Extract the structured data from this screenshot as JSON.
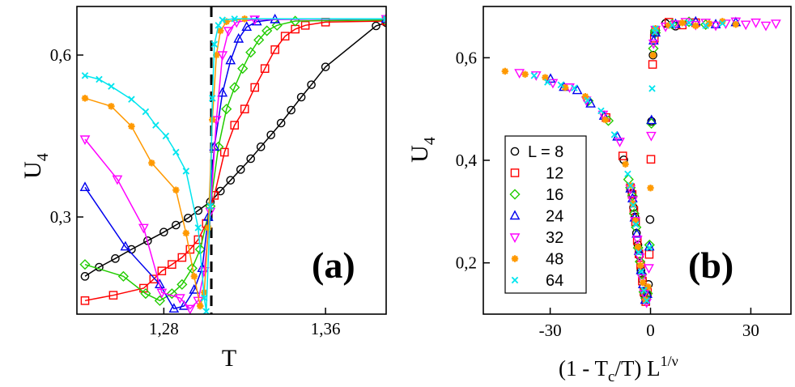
{
  "series_meta": [
    {
      "L": 8,
      "label": "L = 8",
      "color": "#000000",
      "marker": "circle"
    },
    {
      "L": 12,
      "label": "12",
      "color": "#ff0000",
      "marker": "square"
    },
    {
      "L": 16,
      "label": "16",
      "color": "#22cc00",
      "marker": "diamond"
    },
    {
      "L": 24,
      "label": "24",
      "color": "#0000ee",
      "marker": "triangle-up"
    },
    {
      "L": 32,
      "label": "32",
      "color": "#ff00ff",
      "marker": "triangle-down"
    },
    {
      "L": 48,
      "label": "48",
      "color": "#ff9900",
      "marker": "star"
    },
    {
      "L": 64,
      "label": "64",
      "color": "#00e5ee",
      "marker": "cross"
    }
  ],
  "chart_data": [
    {
      "type": "line",
      "panel_label": "(a)",
      "xlabel": "T",
      "ylabel": "U",
      "ylabel_sub": "4",
      "xlim": [
        1.237,
        1.39
      ],
      "ylim": [
        0.12,
        0.69
      ],
      "xticks": [
        {
          "value": 1.28,
          "label": "1,28"
        },
        {
          "value": 1.36,
          "label": "1,36"
        }
      ],
      "yticks": [
        {
          "value": 0.3,
          "label": "0,3"
        },
        {
          "value": 0.6,
          "label": "0,6"
        }
      ],
      "vline": {
        "x": 1.3035,
        "style": "dashed"
      },
      "series": [
        {
          "name": "L = 8",
          "points": [
            [
              1.241,
              0.19
            ],
            [
              1.248,
              0.207
            ],
            [
              1.256,
              0.223
            ],
            [
              1.264,
              0.24
            ],
            [
              1.272,
              0.256
            ],
            [
              1.28,
              0.272
            ],
            [
              1.286,
              0.285
            ],
            [
              1.292,
              0.298
            ],
            [
              1.297,
              0.312
            ],
            [
              1.303,
              0.328
            ],
            [
              1.308,
              0.348
            ],
            [
              1.313,
              0.368
            ],
            [
              1.318,
              0.388
            ],
            [
              1.323,
              0.408
            ],
            [
              1.328,
              0.43
            ],
            [
              1.333,
              0.452
            ],
            [
              1.338,
              0.474
            ],
            [
              1.343,
              0.498
            ],
            [
              1.348,
              0.522
            ],
            [
              1.353,
              0.545
            ],
            [
              1.36,
              0.578
            ],
            [
              1.385,
              0.654
            ],
            [
              1.39,
              0.66
            ]
          ]
        },
        {
          "name": "12",
          "points": [
            [
              1.241,
              0.145
            ],
            [
              1.255,
              0.155
            ],
            [
              1.27,
              0.168
            ],
            [
              1.275,
              0.185
            ],
            [
              1.279,
              0.2
            ],
            [
              1.284,
              0.212
            ],
            [
              1.289,
              0.225
            ],
            [
              1.293,
              0.24
            ],
            [
              1.297,
              0.258
            ],
            [
              1.301,
              0.288
            ],
            [
              1.305,
              0.34
            ],
            [
              1.31,
              0.42
            ],
            [
              1.315,
              0.47
            ],
            [
              1.32,
              0.5
            ],
            [
              1.325,
              0.54
            ],
            [
              1.33,
              0.575
            ],
            [
              1.335,
              0.61
            ],
            [
              1.34,
              0.635
            ],
            [
              1.345,
              0.648
            ],
            [
              1.35,
              0.655
            ],
            [
              1.36,
              0.661
            ],
            [
              1.39,
              0.663
            ]
          ]
        },
        {
          "name": "16",
          "points": [
            [
              1.241,
              0.212
            ],
            [
              1.26,
              0.19
            ],
            [
              1.271,
              0.158
            ],
            [
              1.278,
              0.145
            ],
            [
              1.284,
              0.158
            ],
            [
              1.289,
              0.175
            ],
            [
              1.294,
              0.205
            ],
            [
              1.298,
              0.24
            ],
            [
              1.303,
              0.32
            ],
            [
              1.307,
              0.43
            ],
            [
              1.311,
              0.5
            ],
            [
              1.315,
              0.54
            ],
            [
              1.319,
              0.575
            ],
            [
              1.323,
              0.605
            ],
            [
              1.327,
              0.628
            ],
            [
              1.331,
              0.645
            ],
            [
              1.336,
              0.655
            ],
            [
              1.345,
              0.663
            ],
            [
              1.39,
              0.665
            ]
          ]
        },
        {
          "name": "24",
          "points": [
            [
              1.241,
              0.355
            ],
            [
              1.261,
              0.245
            ],
            [
              1.278,
              0.175
            ],
            [
              1.285,
              0.13
            ],
            [
              1.29,
              0.135
            ],
            [
              1.295,
              0.165
            ],
            [
              1.299,
              0.205
            ],
            [
              1.302,
              0.3
            ],
            [
              1.305,
              0.43
            ],
            [
              1.309,
              0.53
            ],
            [
              1.313,
              0.59
            ],
            [
              1.317,
              0.63
            ],
            [
              1.321,
              0.652
            ],
            [
              1.326,
              0.662
            ],
            [
              1.335,
              0.666
            ],
            [
              1.39,
              0.667
            ]
          ]
        },
        {
          "name": "32",
          "points": [
            [
              1.241,
              0.444
            ],
            [
              1.257,
              0.37
            ],
            [
              1.27,
              0.28
            ],
            [
              1.279,
              0.16
            ],
            [
              1.288,
              0.15
            ],
            [
              1.293,
              0.13
            ],
            [
              1.297,
              0.145
            ],
            [
              1.3,
              0.2
            ],
            [
              1.303,
              0.31
            ],
            [
              1.306,
              0.48
            ],
            [
              1.309,
              0.6
            ],
            [
              1.312,
              0.645
            ],
            [
              1.316,
              0.661
            ],
            [
              1.325,
              0.666
            ],
            [
              1.39,
              0.667
            ]
          ]
        },
        {
          "name": "48",
          "points": [
            [
              1.241,
              0.52
            ],
            [
              1.254,
              0.505
            ],
            [
              1.264,
              0.468
            ],
            [
              1.274,
              0.4
            ],
            [
              1.286,
              0.35
            ],
            [
              1.291,
              0.27
            ],
            [
              1.295,
              0.19
            ],
            [
              1.298,
              0.135
            ],
            [
              1.3,
              0.16
            ],
            [
              1.302,
              0.28
            ],
            [
              1.304,
              0.48
            ],
            [
              1.306,
              0.6
            ],
            [
              1.308,
              0.645
            ],
            [
              1.311,
              0.662
            ],
            [
              1.32,
              0.667
            ],
            [
              1.39,
              0.667
            ]
          ]
        },
        {
          "name": "64",
          "points": [
            [
              1.241,
              0.562
            ],
            [
              1.248,
              0.555
            ],
            [
              1.254,
              0.542
            ],
            [
              1.264,
              0.518
            ],
            [
              1.271,
              0.495
            ],
            [
              1.276,
              0.47
            ],
            [
              1.281,
              0.45
            ],
            [
              1.286,
              0.42
            ],
            [
              1.291,
              0.385
            ],
            [
              1.297,
              0.28
            ],
            [
              1.3,
              0.15
            ],
            [
              1.301,
              0.125
            ],
            [
              1.303,
              0.32
            ],
            [
              1.304,
              0.52
            ],
            [
              1.305,
              0.62
            ],
            [
              1.307,
              0.655
            ],
            [
              1.309,
              0.665
            ],
            [
              1.315,
              0.667
            ],
            [
              1.39,
              0.667
            ]
          ]
        }
      ]
    },
    {
      "type": "scatter",
      "panel_label": "(b)",
      "xlabel": "(1 - T",
      "xlabel_sub": "c",
      "xlabel_mid": "/T)  L",
      "xlabel_sup": "1/ν",
      "ylabel": "U",
      "ylabel_sub": "4",
      "xlim": [
        -50,
        42
      ],
      "ylim": [
        0.1,
        0.7
      ],
      "xticks": [
        {
          "value": -30,
          "label": "-30"
        },
        {
          "value": 0,
          "label": "0"
        },
        {
          "value": 30,
          "label": "30"
        }
      ],
      "yticks": [
        {
          "value": 0.2,
          "label": "0,2"
        },
        {
          "value": 0.4,
          "label": "0,4"
        },
        {
          "value": 0.6,
          "label": "0,6"
        }
      ],
      "legend_position": "left-middle",
      "master_curve": [
        [
          -48,
          0.585
        ],
        [
          -40,
          0.572
        ],
        [
          -30,
          0.555
        ],
        [
          -22,
          0.535
        ],
        [
          -16,
          0.505
        ],
        [
          -12,
          0.47
        ],
        [
          -9,
          0.43
        ],
        [
          -7,
          0.38
        ],
        [
          -5.5,
          0.33
        ],
        [
          -4.5,
          0.28
        ],
        [
          -3.5,
          0.22
        ],
        [
          -2.5,
          0.17
        ],
        [
          -1.8,
          0.135
        ],
        [
          -1.2,
          0.125
        ],
        [
          -0.6,
          0.16
        ],
        [
          -0.2,
          0.26
        ],
        [
          0,
          0.35
        ],
        [
          0.2,
          0.44
        ],
        [
          0.4,
          0.52
        ],
        [
          0.6,
          0.58
        ],
        [
          0.9,
          0.63
        ],
        [
          1.3,
          0.65
        ],
        [
          2,
          0.66
        ],
        [
          4,
          0.665
        ],
        [
          10,
          0.666
        ],
        [
          20,
          0.667
        ],
        [
          38,
          0.667
        ]
      ],
      "series_x_range": [
        [
          -8,
          8
        ],
        [
          -14,
          14
        ],
        [
          -20,
          20
        ],
        [
          -30,
          30
        ],
        [
          -40,
          38
        ],
        [
          -45,
          28
        ],
        [
          -35,
          22
        ]
      ]
    }
  ]
}
